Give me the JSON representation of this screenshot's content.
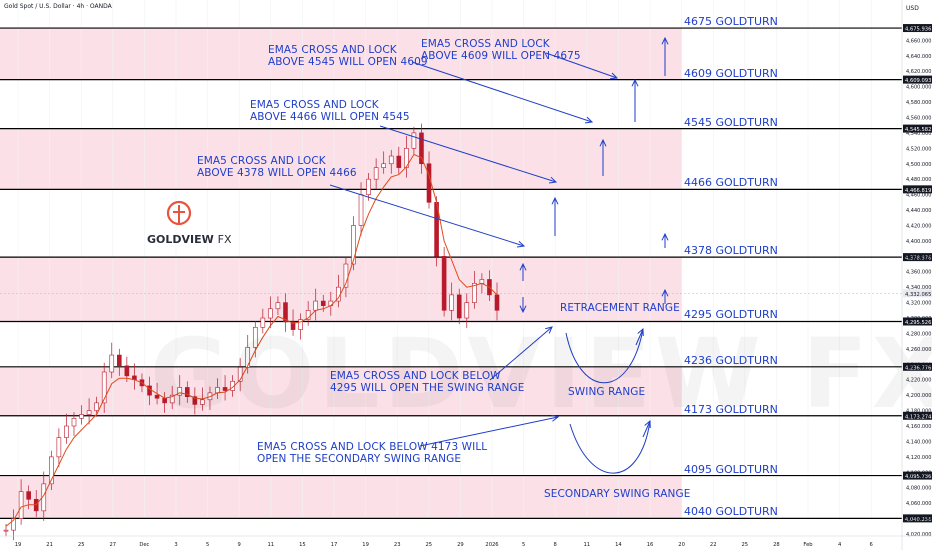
{
  "header": {
    "title": "Gold Spot / U.S. Dollar · 4h · OANDA",
    "currency": "USD"
  },
  "brand": {
    "name": "GOLDVIEW",
    "suffix": "FX",
    "watermark": "GOLDVIEW FX",
    "color": "#e8533c"
  },
  "colors": {
    "accent": "#1f3ec9",
    "zone_fill": "#fbe0e7",
    "up": "#26a69a",
    "down": "#ef5350",
    "candle": "#b81a2c",
    "ema": "#e04a1a"
  },
  "chart_data": {
    "type": "line",
    "series": [
      {
        "values": [
          4025,
          4040,
          4075,
          4065,
          4050,
          4085,
          4120,
          4145,
          4160,
          4170,
          4175,
          4180,
          4190,
          4230,
          4252,
          4238,
          4225,
          4220,
          4212,
          4200,
          4196,
          4190,
          4200,
          4210,
          4198,
          4188,
          4194,
          4203,
          4210,
          4206,
          4218,
          4236,
          4262,
          4288,
          4300,
          4312,
          4320,
          4295,
          4285,
          4298,
          4310,
          4322,
          4316,
          4322,
          4340,
          4370,
          4420,
          4460,
          4480,
          4495,
          4500,
          4510,
          4495,
          4520,
          4540,
          4500,
          4450,
          4380,
          4310,
          4330,
          4300,
          4320,
          4345,
          4350,
          4330,
          4310
        ],
        "ema": [
          4030,
          4038,
          4055,
          4058,
          4058,
          4070,
          4090,
          4110,
          4130,
          4145,
          4155,
          4165,
          4175,
          4195,
          4215,
          4222,
          4222,
          4220,
          4216,
          4208,
          4202,
          4196,
          4198,
          4203,
          4201,
          4196,
          4195,
          4198,
          4203,
          4204,
          4210,
          4220,
          4238,
          4258,
          4275,
          4290,
          4302,
          4298,
          4293,
          4295,
          4300,
          4310,
          4312,
          4316,
          4326,
          4345,
          4375,
          4410,
          4435,
          4455,
          4470,
          4483,
          4486,
          4496,
          4512,
          4508,
          4485,
          4450,
          4400,
          4375,
          4350,
          4340,
          4342,
          4345,
          4340,
          4330
        ]
      }
    ],
    "x_ticks": [
      "19",
      "21",
      "25",
      "27",
      "Dec",
      "3",
      "5",
      "9",
      "11",
      "15",
      "17",
      "19",
      "23",
      "25",
      "29",
      "2026",
      "5",
      "8",
      "11",
      "14",
      "16",
      "20",
      "22",
      "25",
      "28",
      "Feb",
      "4",
      "6"
    ],
    "y_range": [
      4020,
      4700
    ],
    "y_ticks": [
      "4,660.000",
      "4,640.000",
      "4,620.000",
      "4,600.000",
      "4,580.000",
      "4,560.000",
      "4,540.000",
      "4,520.000",
      "4,500.000",
      "4,480.000",
      "4,460.000",
      "4,440.000",
      "4,420.000",
      "4,400.000",
      "4,380.000",
      "4,360.000",
      "4,340.000",
      "4,320.000",
      "4,300.000",
      "4,280.000",
      "4,260.000",
      "4,240.000",
      "4,220.000",
      "4,200.000",
      "4,180.000",
      "4,160.000",
      "4,140.000",
      "4,120.000",
      "4,100.000",
      "4,080.000",
      "4,060.000",
      "4,040.000",
      "4,020.000"
    ],
    "levels": [
      {
        "price": 4675.936,
        "tag": "4,675.936",
        "label": "4675 GOLDTURN"
      },
      {
        "price": 4609.093,
        "tag": "4,609.093",
        "label": "4609 GOLDTURN"
      },
      {
        "price": 4545.582,
        "tag": "4,545.582",
        "label": "4545 GOLDTURN"
      },
      {
        "price": 4466.819,
        "tag": "4,466.819",
        "label": "4466 GOLDTURN"
      },
      {
        "price": 4378.976,
        "tag": "4,378.976",
        "label": "4378 GOLDTURN"
      },
      {
        "price": 4295.526,
        "tag": "4,295.526",
        "label": "4295 GOLDTURN"
      },
      {
        "price": 4236.776,
        "tag": "4,236.776",
        "label": "4236 GOLDTURN"
      },
      {
        "price": 4173.274,
        "tag": "4,173.274",
        "label": "4173 GOLDTURN"
      },
      {
        "price": 4095.736,
        "tag": "4,095.736",
        "label": "4095 GOLDTURN"
      },
      {
        "price": 4040.256,
        "tag": "4,040.256",
        "label": "4040 GOLDTURN"
      }
    ],
    "current_price": {
      "price": 4332.065,
      "tag": "4,332.065"
    },
    "zones": [
      [
        4609.093,
        4675.936
      ],
      [
        4466.819,
        4545.582
      ],
      [
        4295.526,
        4378.976
      ],
      [
        4173.274,
        4236.776
      ],
      [
        4040.256,
        4095.736
      ]
    ],
    "annotations": {
      "a4609": "EMA5 CROSS AND LOCK\nABOVE 4609 WILL OPEN 4675",
      "a4545": "EMA5 CROSS AND LOCK\nABOVE 4545 WILL OPEN 4609",
      "a4466": "EMA5 CROSS AND LOCK\nABOVE 4466 WILL OPEN 4545",
      "a4378": "EMA5 CROSS AND LOCK\nABOVE 4378 WILL OPEN 4466",
      "a4295": "EMA5 CROSS AND LOCK BELOW\n4295 WILL OPEN THE SWING RANGE",
      "a4173": "EMA5 CROSS AND LOCK BELOW 4173 WILL\nOPEN THE SECONDARY SWING RANGE",
      "retracement": "RETRACEMENT RANGE",
      "swing": "SWING RANGE",
      "secondary": "SECONDARY SWING RANGE"
    }
  }
}
